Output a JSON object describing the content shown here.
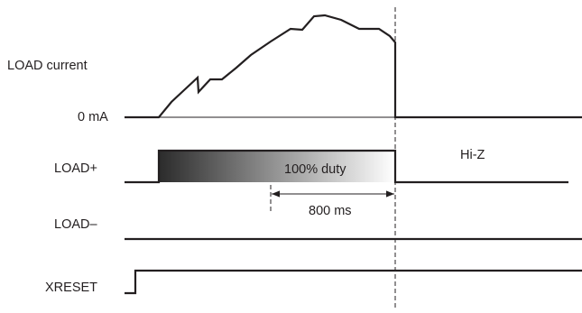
{
  "diagram": {
    "signals": {
      "load_current": "LOAD current",
      "zero_ma": "0 mA",
      "load_plus": "LOAD+",
      "load_minus": "LOAD–",
      "xreset": "XRESET"
    },
    "annotations": {
      "duty": "100% duty",
      "duration": "800 ms",
      "high_z": "Hi-Z"
    },
    "colors": {
      "line": "#231f20",
      "gradient_start": "#2b2b2b",
      "gradient_end": "#ffffff"
    }
  }
}
